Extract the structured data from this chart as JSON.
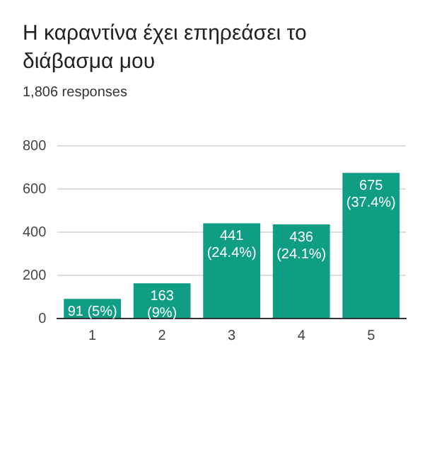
{
  "chart_data": {
    "type": "bar",
    "title": "Η καραντίνα έχει επηρεάσει το διάβασμα μου",
    "subtitle": "1,806 responses",
    "categories": [
      "1",
      "2",
      "3",
      "4",
      "5"
    ],
    "values": [
      91,
      163,
      441,
      436,
      675
    ],
    "value_labels": [
      "91 (5%)",
      "163 (9%)",
      "441 (24.4%)",
      "436 (24.1%)",
      "675 (37.4%)"
    ],
    "color": "#0f9d84",
    "ylim": [
      0,
      800
    ],
    "yticks": [
      0,
      200,
      400,
      600,
      800
    ],
    "grid": "y",
    "legend": false
  }
}
